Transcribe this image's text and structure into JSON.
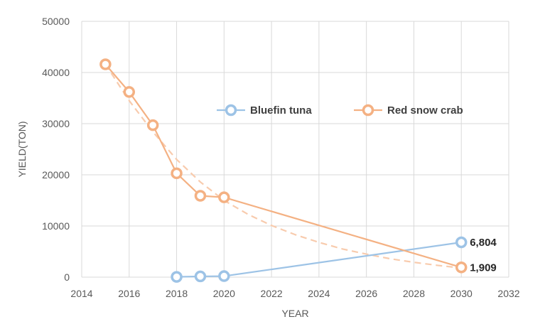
{
  "chart_data": {
    "type": "line",
    "xlabel": "YEAR",
    "ylabel": "YIELD(TON)",
    "xlim": [
      2014,
      2032
    ],
    "ylim": [
      0,
      50000
    ],
    "x_ticks": [
      2014,
      2016,
      2018,
      2020,
      2022,
      2024,
      2026,
      2028,
      2030,
      2032
    ],
    "y_ticks": [
      0,
      10000,
      20000,
      30000,
      40000,
      50000
    ],
    "grid": true,
    "legend_position": "top-right",
    "series": [
      {
        "name": "Bluefin tuna",
        "color": "#9DC3E6",
        "x": [
          2018,
          2019,
          2020,
          2030
        ],
        "y": [
          50,
          150,
          200,
          6804
        ]
      },
      {
        "name": "Red snow crab",
        "color": "#F4B183",
        "x": [
          2015,
          2016,
          2017,
          2018,
          2019,
          2020,
          2030
        ],
        "y": [
          41600,
          36200,
          29700,
          20300,
          15900,
          15600,
          1909
        ]
      }
    ],
    "trendline": {
      "series": "Red snow crab",
      "style": "dashed",
      "color": "#F8CBAD",
      "x": [
        2015,
        2016,
        2017,
        2018,
        2019,
        2020,
        2021,
        2022,
        2023,
        2024,
        2025,
        2026,
        2027,
        2028,
        2029,
        2030
      ],
      "y": [
        41600,
        34500,
        28400,
        23000,
        18600,
        15000,
        12300,
        10100,
        8300,
        6800,
        5500,
        4500,
        3600,
        2900,
        2300,
        1800
      ]
    },
    "data_labels": [
      {
        "series": "Bluefin tuna",
        "x": 2030,
        "y": 6804,
        "text": "6,804"
      },
      {
        "series": "Red snow crab",
        "x": 2030,
        "y": 1909,
        "text": "1,909"
      }
    ]
  }
}
